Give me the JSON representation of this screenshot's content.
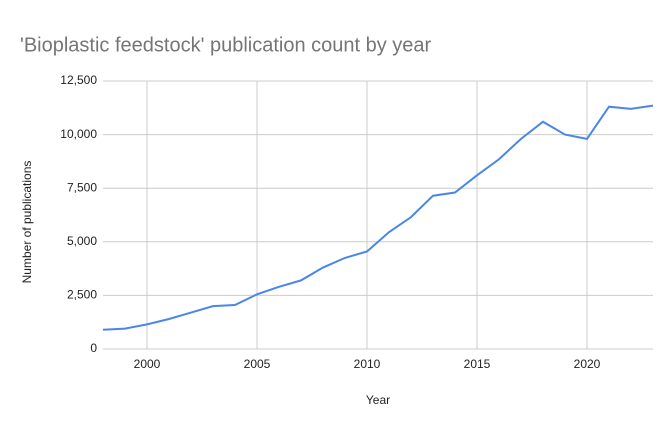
{
  "chart_data": {
    "type": "line",
    "title": "'Bioplastic feedstock' publication count by year",
    "x_label": "Year",
    "y_label": "Number of publications",
    "x": [
      1998,
      1999,
      2000,
      2001,
      2002,
      2003,
      2004,
      2005,
      2006,
      2007,
      2008,
      2009,
      2010,
      2011,
      2012,
      2013,
      2014,
      2015,
      2016,
      2017,
      2018,
      2019,
      2020,
      2021,
      2022,
      2023
    ],
    "series": [
      {
        "name": "Publications",
        "color": "#4a86e8",
        "values": [
          900,
          950,
          1150,
          1400,
          1700,
          2000,
          2050,
          2550,
          2900,
          3200,
          3800,
          4250,
          4550,
          5450,
          6150,
          7150,
          7300,
          8100,
          8850,
          9800,
          10600,
          10000,
          9800,
          11300,
          11200,
          11350
        ]
      }
    ],
    "xlim": [
      1998,
      2023
    ],
    "xticks": [
      2000,
      2005,
      2010,
      2015,
      2020
    ],
    "ylim": [
      0,
      12500
    ],
    "yticks": [
      0,
      {
        "value": 2500,
        "label": "2,500"
      },
      {
        "value": 5000,
        "label": "5,000"
      },
      {
        "value": 7500,
        "label": "7,500"
      },
      {
        "value": 10000,
        "label": "10,000"
      },
      {
        "value": 12500,
        "label": "12,500"
      }
    ],
    "grid": true
  }
}
